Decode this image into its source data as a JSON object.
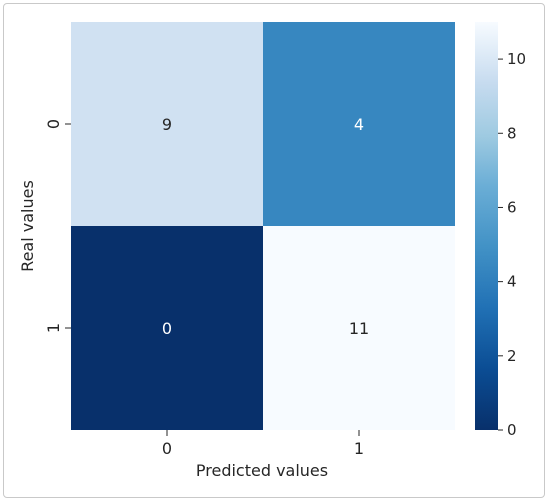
{
  "chart_data": {
    "type": "heatmap",
    "title": "",
    "xlabel": "Predicted values",
    "ylabel": "Real values",
    "x_categories": [
      "0",
      "1"
    ],
    "y_categories": [
      "0",
      "1"
    ],
    "values": [
      [
        9,
        4
      ],
      [
        0,
        11
      ]
    ],
    "annotations": true,
    "colormap": "Blues_r",
    "colorbar": {
      "min": 0,
      "max": 11,
      "ticks": [
        0,
        2,
        4,
        6,
        8,
        10
      ]
    },
    "colors": {
      "cell_0_0": "#d0e1f2",
      "cell_0_1": "#3787c0",
      "cell_1_0": "#08306b",
      "cell_1_1": "#f7fbff",
      "dark_text": "#262626",
      "light_text": "#ffffff"
    }
  }
}
